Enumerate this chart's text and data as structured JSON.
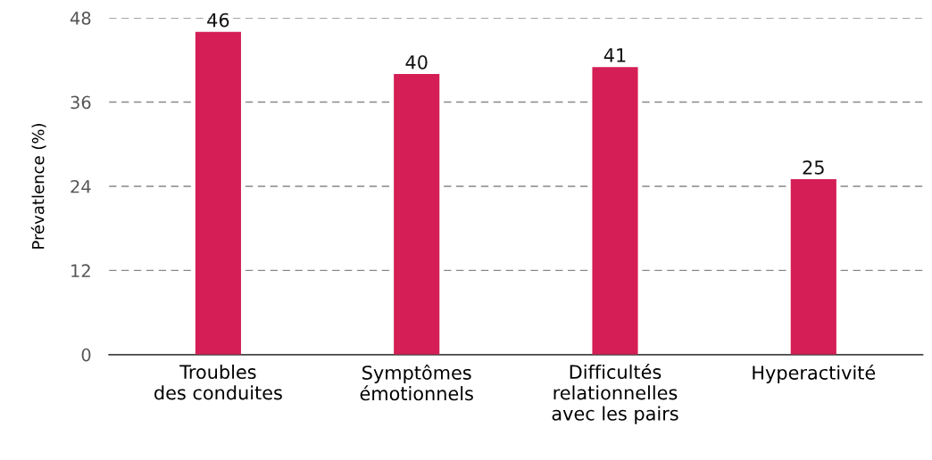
{
  "chart_data": {
    "type": "bar",
    "ylabel": "Prévatlence (%)",
    "categories": [
      "Troubles\ndes conduites",
      "Symptômes\némotionnels",
      "Difficultés\nrelationnelles\navec les pairs",
      "Hyperactivité"
    ],
    "values": [
      46,
      40,
      41,
      25
    ],
    "color": "#d41e55",
    "ylim": [
      0,
      48
    ],
    "yticks": [
      0,
      12,
      24,
      36,
      48
    ],
    "grid": "y",
    "data_labels": true
  }
}
